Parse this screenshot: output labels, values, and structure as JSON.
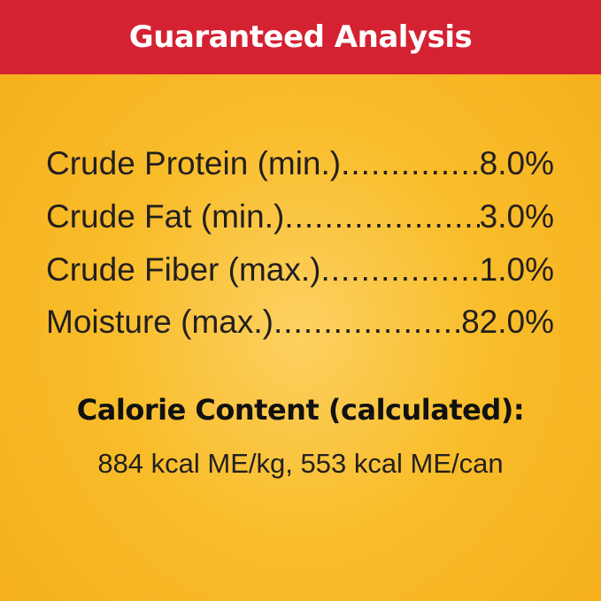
{
  "header": {
    "title": "Guaranteed Analysis"
  },
  "analysis": [
    {
      "label": "Crude Protein (min.)",
      "value": "8.0%"
    },
    {
      "label": "Crude Fat (min.)",
      "value": "3.0%"
    },
    {
      "label": "Crude Fiber (max.)",
      "value": "1.0%"
    },
    {
      "label": "Moisture (max.)",
      "value": "82.0%"
    }
  ],
  "calorie": {
    "title": "Calorie Content (calculated):",
    "value": "884 kcal ME/kg, 553 kcal ME/can"
  },
  "colors": {
    "header": "#d42232",
    "background": "#f9bd2a",
    "text": "#231f20"
  }
}
